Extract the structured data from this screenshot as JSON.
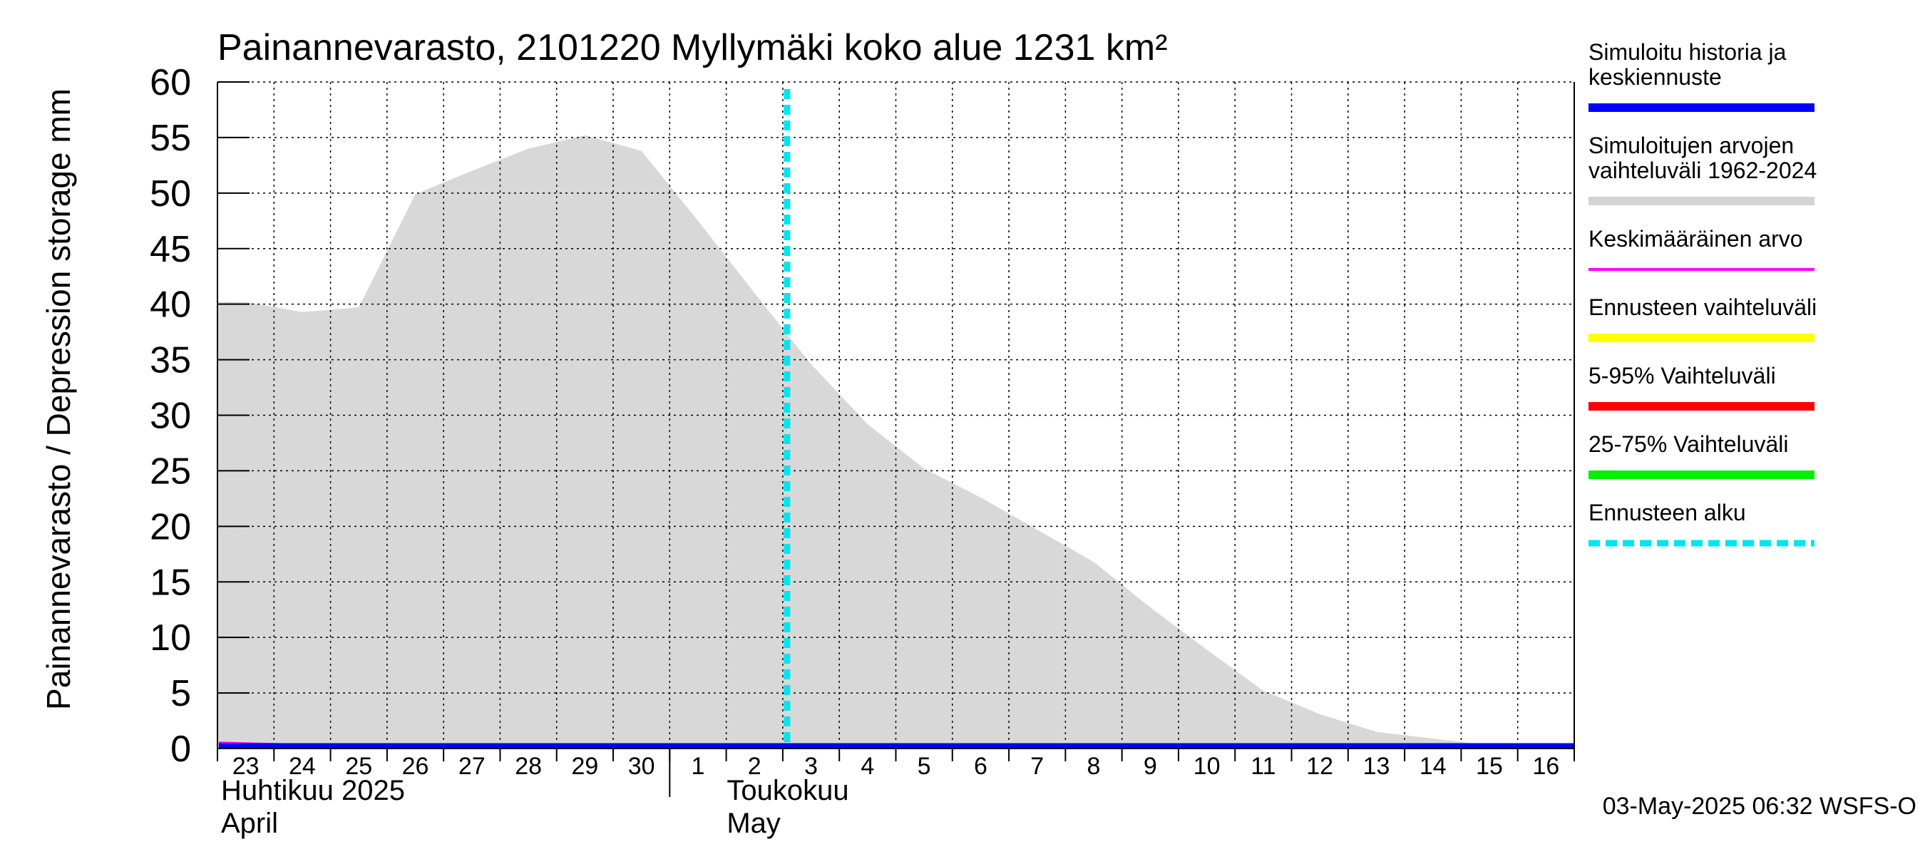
{
  "chart_data": {
    "type": "area",
    "title": "Painannevarasto, 2101220 Myllymäki koko alue 1231 km²",
    "ylabel": "Painannevarasto / Depression storage    mm",
    "ylim": [
      0,
      60
    ],
    "yticks": [
      0,
      5,
      10,
      15,
      20,
      25,
      30,
      35,
      40,
      45,
      50,
      55,
      60
    ],
    "xlim": [
      "2025-04-23",
      "2025-05-16"
    ],
    "x_tick_labels": [
      "23",
      "24",
      "25",
      "26",
      "27",
      "28",
      "29",
      "30",
      "1",
      "2",
      "3",
      "4",
      "5",
      "6",
      "7",
      "8",
      "9",
      "10",
      "11",
      "12",
      "13",
      "14",
      "15",
      "16"
    ],
    "month_labels": [
      {
        "fi": "Huhtikuu  2025",
        "en": "April",
        "start": "2025-04-23"
      },
      {
        "fi": "Toukokuu",
        "en": "May",
        "start": "2025-05-01"
      }
    ],
    "grid": true,
    "forecast_start": "2025-05-03",
    "timestamp": "03-May-2025 06:32 WSFS-O",
    "series": [
      {
        "name": "Simuloitujen arvojen vaihteluväli 1962-2024",
        "kind": "band",
        "color": "#d8d8d8",
        "x": [
          "2025-04-23",
          "2025-04-24",
          "2025-04-25",
          "2025-04-26",
          "2025-04-27",
          "2025-04-28",
          "2025-04-29",
          "2025-04-30",
          "2025-05-01",
          "2025-05-02",
          "2025-05-03",
          "2025-05-04",
          "2025-05-05",
          "2025-05-06",
          "2025-05-07",
          "2025-05-08",
          "2025-05-09",
          "2025-05-10",
          "2025-05-11",
          "2025-05-12",
          "2025-05-13",
          "2025-05-14",
          "2025-05-15",
          "2025-05-16"
        ],
        "upper": [
          40.2,
          39.3,
          39.7,
          49.9,
          52.0,
          54.0,
          55.2,
          53.8,
          47.5,
          41.0,
          34.6,
          29.2,
          25.2,
          22.6,
          19.7,
          16.8,
          12.7,
          8.9,
          5.2,
          3.1,
          1.5,
          0.9,
          0.3,
          0.3
        ],
        "lower": [
          0,
          0,
          0,
          0,
          0,
          0,
          0,
          0,
          0,
          0,
          0,
          0,
          0,
          0,
          0,
          0,
          0,
          0,
          0,
          0,
          0,
          0,
          0,
          0
        ]
      },
      {
        "name": "Keskimääräinen arvo",
        "kind": "line",
        "color": "#ff00ff",
        "x": [
          "2025-04-23",
          "2025-04-24",
          "2025-04-26",
          "2025-04-28",
          "2025-05-01",
          "2025-05-16"
        ],
        "y": [
          0.5,
          0.3,
          0.2,
          0.15,
          0.1,
          0.1
        ]
      },
      {
        "name": "Simuloitu historia ja keskiennuste",
        "kind": "line",
        "color": "#0000ff",
        "x": [
          "2025-04-23",
          "2025-05-03",
          "2025-05-16"
        ],
        "y": [
          0,
          0,
          0
        ]
      }
    ],
    "legend": {
      "placement": "right",
      "entries": [
        {
          "label": "Simuloitu historia ja\nkeskiennuste",
          "color": "#0000ff",
          "style": "solid"
        },
        {
          "label": "Simuloitujen arvojen\nvaihteluväli 1962-2024",
          "color": "#d3d3d3",
          "style": "solid"
        },
        {
          "label": "Keskimääräinen arvo",
          "color": "#ff00ff",
          "style": "thin"
        },
        {
          "label": "Ennusteen vaihteluväli",
          "color": "#ffff00",
          "style": "solid"
        },
        {
          "label": "5-95% Vaihteluväli",
          "color": "#ff0000",
          "style": "solid"
        },
        {
          "label": "25-75% Vaihteluväli",
          "color": "#00ee00",
          "style": "solid"
        },
        {
          "label": "Ennusteen alku",
          "color": "#00e5ee",
          "style": "dashed"
        }
      ]
    }
  }
}
